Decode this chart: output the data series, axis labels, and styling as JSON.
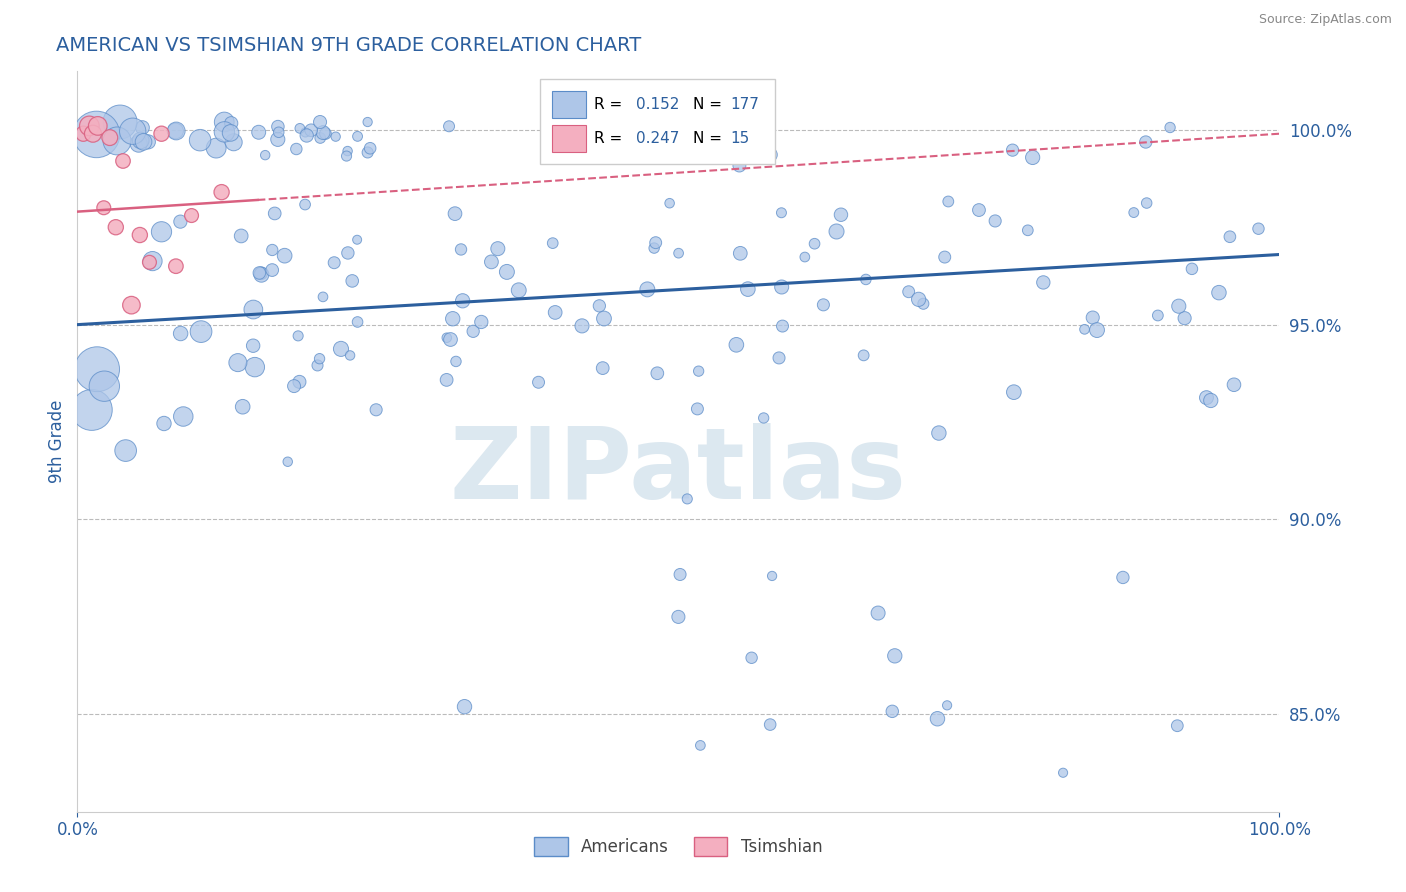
{
  "title": "AMERICAN VS TSIMSHIAN 9TH GRADE CORRELATION CHART",
  "source_text": "Source: ZipAtlas.com",
  "ylabel": "9th Grade",
  "xlim": [
    0.0,
    1.0
  ],
  "ylim": [
    0.825,
    1.015
  ],
  "yticks": [
    0.85,
    0.9,
    0.95,
    1.0
  ],
  "ytick_labels": [
    "85.0%",
    "90.0%",
    "95.0%",
    "100.0%"
  ],
  "xticks": [
    0.0,
    1.0
  ],
  "xtick_labels": [
    "0.0%",
    "100.0%"
  ],
  "americans_R": 0.152,
  "americans_N": 177,
  "tsimshian_R": 0.247,
  "tsimshian_N": 15,
  "american_color": "#aec6e8",
  "american_edge_color": "#5b8cc8",
  "tsimshian_color": "#f4afc0",
  "tsimshian_edge_color": "#d96080",
  "trend_american_color": "#2c5f9e",
  "trend_tsimshian_color": "#d96080",
  "background_color": "#ffffff",
  "watermark_color": "#dce8f0",
  "grid_color": "#bbbbbb",
  "title_color": "#2c5f9e",
  "axis_label_color": "#2c5f9e",
  "tick_label_color": "#2c5f9e",
  "legend_r_color": "#2c5f9e",
  "am_trend_x0": 0.0,
  "am_trend_x1": 1.0,
  "am_trend_y0": 0.95,
  "am_trend_y1": 0.968,
  "ts_trend_x0": 0.0,
  "ts_trend_x1": 1.0,
  "ts_trend_y0": 0.979,
  "ts_trend_y1": 0.999
}
